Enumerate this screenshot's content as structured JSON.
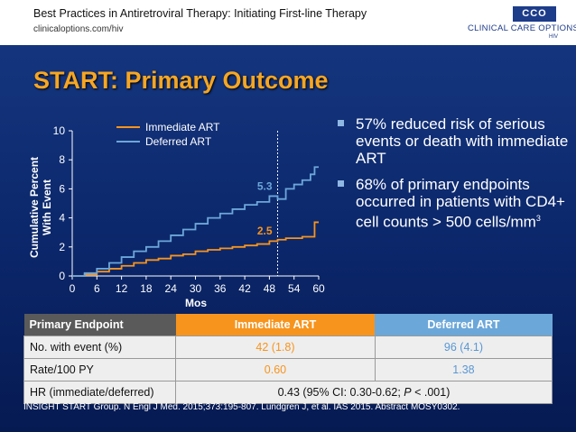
{
  "header": {
    "title": "Best Practices in Antiretroviral Therapy: Initiating First-line Therapy",
    "url": "clinicaloptions.com/hiv",
    "logo_badge": "CCO",
    "logo_name": "CLINICAL CARE OPTIONS",
    "logo_sub": "HIV"
  },
  "slide_title": "START: Primary Outcome",
  "chart_data": {
    "type": "line",
    "title": "",
    "xlabel": "Mos",
    "ylabel_lines": [
      "Cumulative Percent",
      "With Event"
    ],
    "xlim": [
      0,
      60
    ],
    "ylim": [
      0,
      10
    ],
    "xticks": [
      0,
      6,
      12,
      18,
      24,
      30,
      36,
      42,
      48,
      54,
      60
    ],
    "yticks": [
      0,
      2,
      4,
      6,
      8,
      10
    ],
    "grid": false,
    "legend_placement": "top-left",
    "reference_line_x": 50,
    "series": [
      {
        "name": "Immediate ART",
        "color": "#f7941d",
        "points": [
          [
            0,
            0
          ],
          [
            3,
            0.1
          ],
          [
            6,
            0.3
          ],
          [
            9,
            0.5
          ],
          [
            12,
            0.7
          ],
          [
            15,
            0.9
          ],
          [
            18,
            1.1
          ],
          [
            21,
            1.2
          ],
          [
            24,
            1.4
          ],
          [
            27,
            1.5
          ],
          [
            30,
            1.7
          ],
          [
            33,
            1.8
          ],
          [
            36,
            1.9
          ],
          [
            39,
            2.0
          ],
          [
            42,
            2.1
          ],
          [
            45,
            2.2
          ],
          [
            48,
            2.4
          ],
          [
            50,
            2.5
          ],
          [
            52,
            2.6
          ],
          [
            56,
            2.7
          ],
          [
            58,
            2.7
          ],
          [
            59,
            3.7
          ],
          [
            60,
            3.7
          ]
        ],
        "end_label": "2.5"
      },
      {
        "name": "Deferred ART",
        "color": "#6ca7d9",
        "points": [
          [
            0,
            0
          ],
          [
            3,
            0.2
          ],
          [
            6,
            0.5
          ],
          [
            9,
            0.9
          ],
          [
            12,
            1.3
          ],
          [
            15,
            1.7
          ],
          [
            18,
            2.0
          ],
          [
            21,
            2.4
          ],
          [
            24,
            2.8
          ],
          [
            27,
            3.2
          ],
          [
            30,
            3.6
          ],
          [
            33,
            4.0
          ],
          [
            36,
            4.3
          ],
          [
            39,
            4.6
          ],
          [
            42,
            4.9
          ],
          [
            45,
            5.1
          ],
          [
            48,
            5.5
          ],
          [
            50,
            5.3
          ],
          [
            52,
            6.0
          ],
          [
            54,
            6.3
          ],
          [
            56,
            6.6
          ],
          [
            58,
            7.0
          ],
          [
            59,
            7.5
          ],
          [
            60,
            7.5
          ]
        ],
        "end_label": "5.3"
      }
    ]
  },
  "bullets": [
    {
      "text": "57% reduced risk of serious events or death with immediate ART",
      "sup": ""
    },
    {
      "text": "68% of primary endpoints occurred in patients with CD4+ cell counts > 500 cells/mm",
      "sup": "3"
    }
  ],
  "table": {
    "headers": [
      "Primary Endpoint",
      "Immediate ART",
      "Deferred ART"
    ],
    "rows": [
      {
        "label": "No. with event (%)",
        "immediate": "42 (1.8)",
        "deferred": "96 (4.1)"
      },
      {
        "label": "Rate/100 PY",
        "immediate": "0.60",
        "deferred": "1.38"
      },
      {
        "label": "HR (immediate/deferred)",
        "combined": "0.43 (95% CI: 0.30-0.62; ",
        "p_label": "P",
        "p_value": " < .001)"
      }
    ]
  },
  "citation": "INSIGHT START Group. N Engl J Med. 2015;373:195-807. Lundgren J, et al. IAS 2015. Abstract MOSY0302."
}
